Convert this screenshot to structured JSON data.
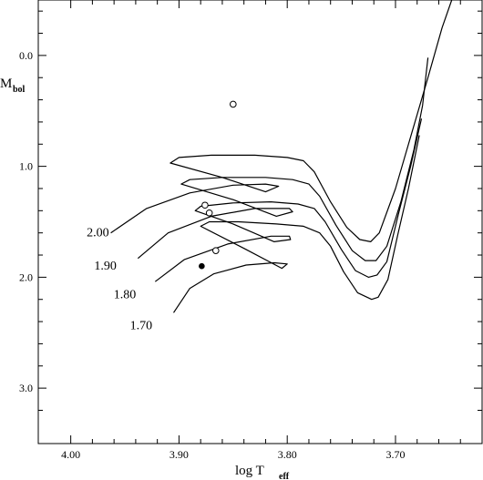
{
  "chart_data": {
    "type": "line",
    "title": "",
    "xlabel": {
      "main": "log T",
      "sub": "eff"
    },
    "ylabel": {
      "main": "M",
      "sub": "bol"
    },
    "xlim": [
      4.03,
      3.62
    ],
    "ylim": [
      -0.5,
      3.5
    ],
    "x_reversed": true,
    "y_reversed": true,
    "xticks": [
      {
        "value": 4.0,
        "label": "4.00"
      },
      {
        "value": 3.9,
        "label": "3.90"
      },
      {
        "value": 3.8,
        "label": "3.80"
      },
      {
        "value": 3.7,
        "label": "3.70"
      }
    ],
    "yticks": [
      {
        "value": 0.0,
        "label": "0.0"
      },
      {
        "value": 1.0,
        "label": "1.0"
      },
      {
        "value": 2.0,
        "label": "2.0"
      },
      {
        "value": 3.0,
        "label": "3.0"
      }
    ],
    "series": [
      {
        "name": "2.00",
        "label_at": [
          3.975,
          1.63
        ],
        "points": [
          [
            3.963,
            1.6
          ],
          [
            3.93,
            1.38
          ],
          [
            3.89,
            1.24
          ],
          [
            3.85,
            1.17
          ],
          [
            3.82,
            1.16
          ],
          [
            3.808,
            1.18
          ],
          [
            3.82,
            1.23
          ],
          [
            3.86,
            1.1
          ],
          [
            3.908,
            0.97
          ],
          [
            3.9,
            0.92
          ],
          [
            3.87,
            0.9
          ],
          [
            3.83,
            0.9
          ],
          [
            3.8,
            0.92
          ],
          [
            3.785,
            0.95
          ],
          [
            3.775,
            1.05
          ],
          [
            3.76,
            1.32
          ],
          [
            3.745,
            1.55
          ],
          [
            3.733,
            1.66
          ],
          [
            3.723,
            1.68
          ],
          [
            3.715,
            1.6
          ],
          [
            3.7,
            1.2
          ],
          [
            3.685,
            0.7
          ],
          [
            3.67,
            0.2
          ],
          [
            3.657,
            -0.25
          ],
          [
            3.648,
            -0.5
          ]
        ]
      },
      {
        "name": "1.90",
        "label_at": [
          3.968,
          1.93
        ],
        "points": [
          [
            3.938,
            1.83
          ],
          [
            3.91,
            1.6
          ],
          [
            3.87,
            1.45
          ],
          [
            3.83,
            1.38
          ],
          [
            3.798,
            1.38
          ],
          [
            3.795,
            1.41
          ],
          [
            3.81,
            1.45
          ],
          [
            3.85,
            1.3
          ],
          [
            3.898,
            1.16
          ],
          [
            3.89,
            1.12
          ],
          [
            3.86,
            1.1
          ],
          [
            3.82,
            1.1
          ],
          [
            3.795,
            1.12
          ],
          [
            3.78,
            1.16
          ],
          [
            3.77,
            1.27
          ],
          [
            3.755,
            1.53
          ],
          [
            3.74,
            1.76
          ],
          [
            3.728,
            1.85
          ],
          [
            3.718,
            1.85
          ],
          [
            3.708,
            1.72
          ],
          [
            3.695,
            1.32
          ],
          [
            3.683,
            0.85
          ],
          [
            3.675,
            0.45
          ],
          [
            3.67,
            0.02
          ]
        ]
      },
      {
        "name": "1.80",
        "label_at": [
          3.95,
          2.19
        ],
        "points": [
          [
            3.922,
            2.04
          ],
          [
            3.895,
            1.84
          ],
          [
            3.855,
            1.7
          ],
          [
            3.815,
            1.63
          ],
          [
            3.798,
            1.63
          ],
          [
            3.797,
            1.66
          ],
          [
            3.812,
            1.68
          ],
          [
            3.85,
            1.52
          ],
          [
            3.885,
            1.4
          ],
          [
            3.88,
            1.36
          ],
          [
            3.85,
            1.33
          ],
          [
            3.815,
            1.32
          ],
          [
            3.79,
            1.34
          ],
          [
            3.775,
            1.38
          ],
          [
            3.765,
            1.5
          ],
          [
            3.75,
            1.75
          ],
          [
            3.737,
            1.94
          ],
          [
            3.725,
            2.0
          ],
          [
            3.717,
            1.98
          ],
          [
            3.708,
            1.86
          ],
          [
            3.697,
            1.42
          ],
          [
            3.686,
            1.0
          ],
          [
            3.676,
            0.57
          ]
        ]
      },
      {
        "name": "1.70",
        "label_at": [
          3.935,
          2.47
        ],
        "points": [
          [
            3.905,
            2.32
          ],
          [
            3.89,
            2.1
          ],
          [
            3.868,
            1.97
          ],
          [
            3.838,
            1.89
          ],
          [
            3.812,
            1.87
          ],
          [
            3.8,
            1.88
          ],
          [
            3.805,
            1.92
          ],
          [
            3.84,
            1.74
          ],
          [
            3.88,
            1.54
          ],
          [
            3.872,
            1.5
          ],
          [
            3.845,
            1.5
          ],
          [
            3.81,
            1.52
          ],
          [
            3.785,
            1.54
          ],
          [
            3.77,
            1.6
          ],
          [
            3.76,
            1.72
          ],
          [
            3.748,
            1.95
          ],
          [
            3.735,
            2.14
          ],
          [
            3.722,
            2.2
          ],
          [
            3.716,
            2.18
          ],
          [
            3.707,
            2.02
          ],
          [
            3.698,
            1.62
          ],
          [
            3.688,
            1.2
          ],
          [
            3.678,
            0.72
          ]
        ]
      }
    ],
    "points_open": [
      [
        3.85,
        0.44
      ],
      [
        3.876,
        1.35
      ],
      [
        3.872,
        1.42
      ],
      [
        3.866,
        1.76
      ]
    ],
    "points_filled": [
      [
        3.879,
        1.9
      ]
    ]
  }
}
